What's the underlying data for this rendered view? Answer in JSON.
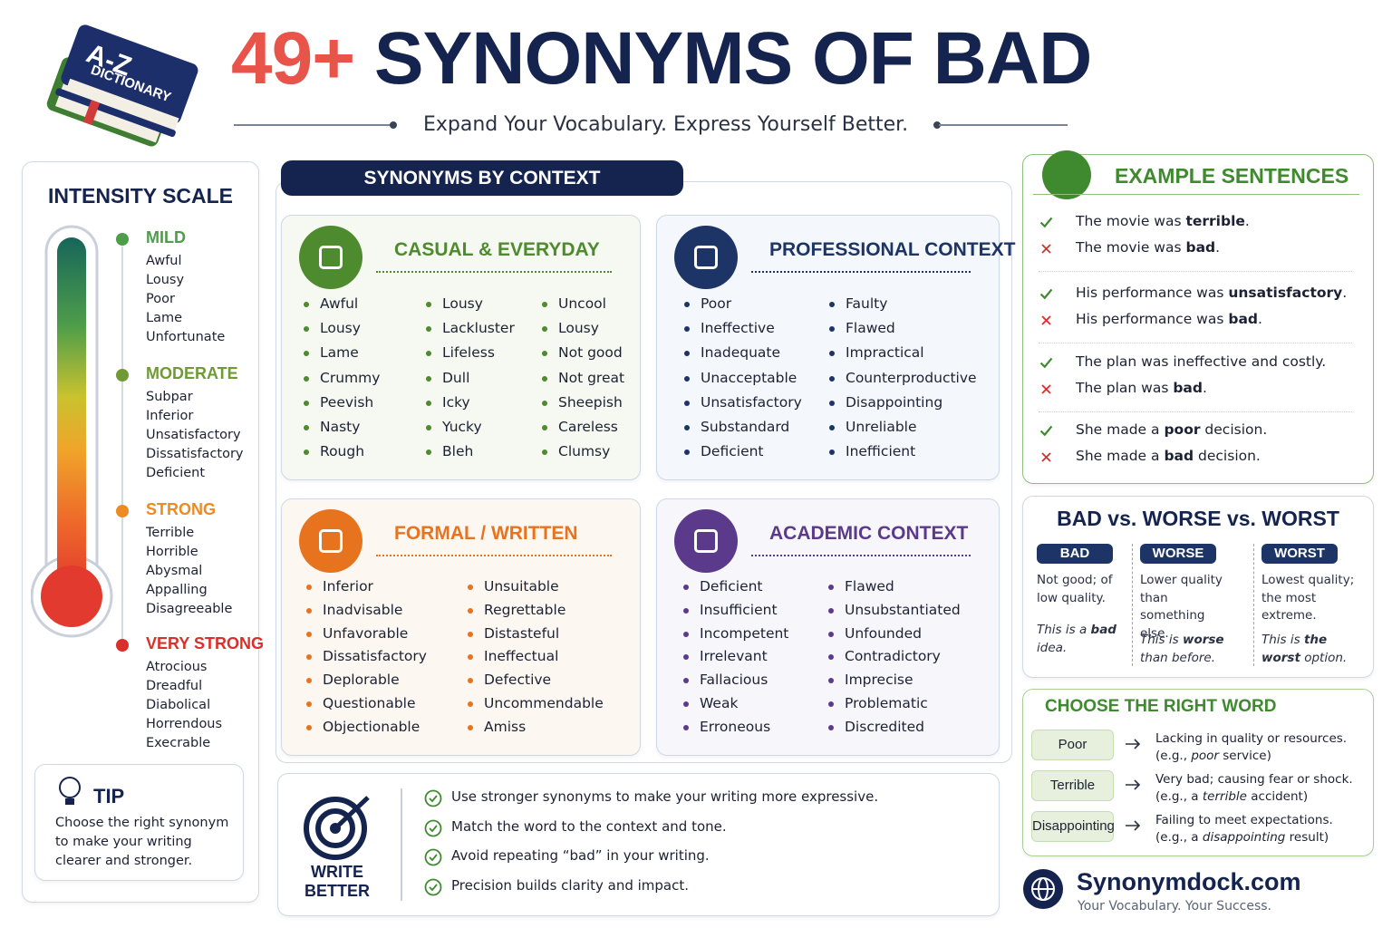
{
  "header": {
    "book_top": "A-Z",
    "book_sub": "DICTIONARY",
    "title_number": "49+",
    "title_text": "SYNONYMS OF BAD",
    "subtitle": "Expand Your Vocabulary. Express Yourself Better."
  },
  "intensity": {
    "title": "INTENSITY SCALE",
    "levels": [
      {
        "label": "MILD",
        "color": "#4e9d4a",
        "words": [
          "Awful",
          "Lousy",
          "Poor",
          "Lame",
          "Unfortunate"
        ]
      },
      {
        "label": "MODERATE",
        "color": "#6f9a35",
        "words": [
          "Subpar",
          "Inferior",
          "Unsatisfactory",
          "Dissatisfactory",
          "Deficient"
        ]
      },
      {
        "label": "STRONG",
        "color": "#ee8a22",
        "words": [
          "Terrible",
          "Horrible",
          "Abysmal",
          "Appalling",
          "Disagreeable"
        ]
      },
      {
        "label": "VERY STRONG",
        "color": "#d8302a",
        "words": [
          "Atrocious",
          "Dreadful",
          "Diabolical",
          "Horrendous",
          "Execrable"
        ]
      }
    ]
  },
  "tip": {
    "title": "TIP",
    "text": "Choose the right synonym to make your writing clearer and stronger."
  },
  "context": {
    "title": "SYNONYMS BY CONTEXT",
    "panels": [
      {
        "title": "CASUAL & EVERYDAY",
        "color": "#4e8a2e",
        "bg": "#f6f9f1",
        "columns": [
          [
            "Awful",
            "Lousy",
            "Lame",
            "Crummy",
            "Peevish",
            "Nasty",
            "Rough"
          ],
          [
            "Lousy",
            "Lackluster",
            "Lifeless",
            "Dull",
            "Icky",
            "Yucky",
            "Bleh"
          ],
          [
            "Uncool",
            "Lousy",
            "Not good",
            "Not great",
            "Sheepish",
            "Careless",
            "Clumsy"
          ]
        ]
      },
      {
        "title": "PROFESSIONAL CONTEXT",
        "color": "#1d3466",
        "bg": "#f4f7fb",
        "columns": [
          [
            "Poor",
            "Ineffective",
            "Inadequate",
            "Unacceptable",
            "Unsatisfactory",
            "Substandard",
            "Deficient"
          ],
          [
            "Faulty",
            "Flawed",
            "Impractical",
            "Counterproductive",
            "Disappointing",
            "Unreliable",
            "Inefficient"
          ]
        ]
      },
      {
        "title": "FORMAL / WRITTEN",
        "color": "#e8731f",
        "bg": "#fdf7f1",
        "columns": [
          [
            "Inferior",
            "Inadvisable",
            "Unfavorable",
            "Dissatisfactory",
            "Deplorable",
            "Questionable",
            "Objectionable"
          ],
          [
            "Unsuitable",
            "Regrettable",
            "Distasteful",
            "Ineffectual",
            "Defective",
            "Uncommendable",
            "Amiss"
          ]
        ]
      },
      {
        "title": "ACADEMIC CONTEXT",
        "color": "#5b3a8c",
        "bg": "#f7f6fb",
        "columns": [
          [
            "Deficient",
            "Insufficient",
            "Incompetent",
            "Irrelevant",
            "Fallacious",
            "Weak",
            "Erroneous"
          ],
          [
            "Flawed",
            "Unsubstantiated",
            "Unfounded",
            "Contradictory",
            "Imprecise",
            "Problematic",
            "Discredited"
          ]
        ]
      }
    ]
  },
  "tips": {
    "label": [
      "WRITE",
      "BETTER"
    ],
    "items": [
      "Use stronger synonyms to make your writing more expressive.",
      "Match the word to the context and tone.",
      "Avoid repeating “bad” in your writing.",
      "Precision builds clarity and impact."
    ]
  },
  "examples": {
    "title": "EXAMPLE SENTENCES",
    "pairs": [
      {
        "good": [
          {
            "text": "The movie was "
          },
          {
            "text": "terrible",
            "bold": true
          },
          {
            "text": "."
          }
        ],
        "bad": [
          {
            "text": "The movie was "
          },
          {
            "text": "bad",
            "bold": true
          },
          {
            "text": "."
          }
        ]
      },
      {
        "good": [
          {
            "text": "His performance was "
          },
          {
            "text": "unsatisfactory",
            "bold": true
          },
          {
            "text": "."
          }
        ],
        "bad": [
          {
            "text": "His performance was "
          },
          {
            "text": "bad",
            "bold": true
          },
          {
            "text": "."
          }
        ]
      },
      {
        "good": [
          {
            "text": "The plan was ineffective and costly."
          }
        ],
        "bad": [
          {
            "text": "The plan was "
          },
          {
            "text": "bad",
            "bold": true
          },
          {
            "text": "."
          }
        ]
      },
      {
        "good": [
          {
            "text": "She made a "
          },
          {
            "text": "poor",
            "bold": true
          },
          {
            "text": " decision."
          }
        ],
        "bad": [
          {
            "text": "She made a "
          },
          {
            "text": "bad",
            "bold": true
          },
          {
            "text": " decision."
          }
        ]
      }
    ]
  },
  "compare": {
    "title": "BAD vs. WORSE vs. WORST",
    "columns": [
      {
        "label": "BAD",
        "definition": "Not good; of low quality.",
        "example": [
          {
            "text": "This is a "
          },
          {
            "text": "bad",
            "bold": true
          },
          {
            "text": " idea."
          }
        ]
      },
      {
        "label": "WORSE",
        "definition": "Lower quality than something else.",
        "example": [
          {
            "text": "This is "
          },
          {
            "text": "worse",
            "bold": true
          },
          {
            "text": " than before."
          }
        ]
      },
      {
        "label": "WORST",
        "definition": "Lowest quality; the most extreme.",
        "example": [
          {
            "text": "This is "
          },
          {
            "text": "the worst",
            "bold": true
          },
          {
            "text": " option."
          }
        ]
      }
    ]
  },
  "choose": {
    "title": "CHOOSE THE RIGHT WORD",
    "rows": [
      {
        "word": "Poor",
        "meaning": "Lacking in quality or resources.",
        "example": [
          {
            "text": "(e.g., "
          },
          {
            "text": "poor",
            "italic": true
          },
          {
            "text": " service)"
          }
        ]
      },
      {
        "word": "Terrible",
        "meaning": "Very bad; causing fear or shock.",
        "example": [
          {
            "text": "(e.g., a "
          },
          {
            "text": "terrible",
            "italic": true
          },
          {
            "text": " accident)"
          }
        ]
      },
      {
        "word": "Disappointing",
        "meaning": "Failing to meet expectations.",
        "example": [
          {
            "text": "(e.g., a "
          },
          {
            "text": "disappointing",
            "italic": true
          },
          {
            "text": " result)"
          }
        ]
      }
    ]
  },
  "footer": {
    "site": "Synonymdock.com",
    "tagline": "Your Vocabulary. Your Success."
  }
}
